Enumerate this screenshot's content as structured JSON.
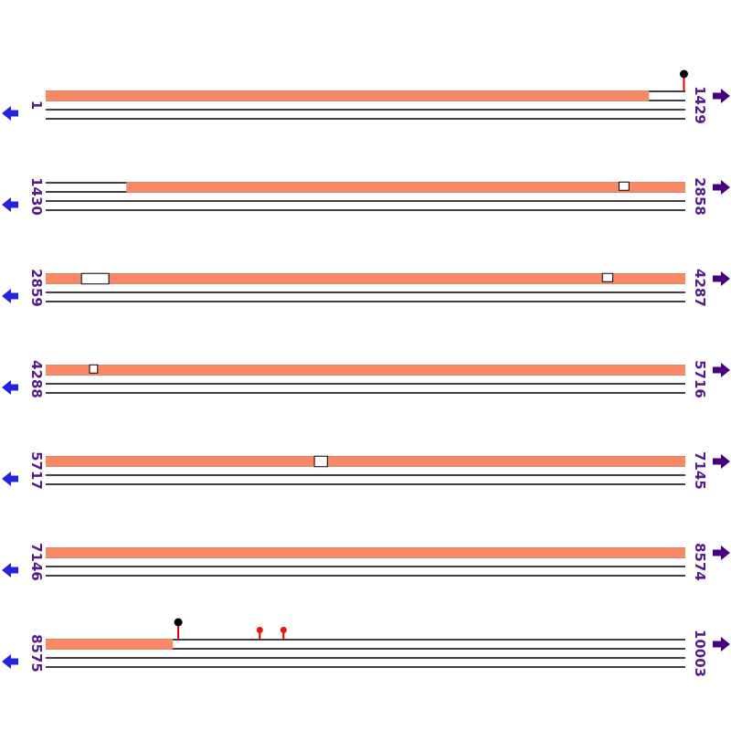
{
  "colors": {
    "bar": "#FA8864",
    "track_line": "#000000",
    "label": "#551A8B",
    "left_arrow": "#2424DF",
    "right_arrow": "#4B0082",
    "pin_stem": "#DD0000",
    "pin_head_red": "#EE1111",
    "pin_head_black": "#000000",
    "gap_fill": "#FFFFFF",
    "gap_border": "#000000",
    "background": "#FFFFFF"
  },
  "icons": {
    "left_nav": "left-arrow-icon",
    "right_nav": "right-arrow-icon",
    "marker": "pin-icon"
  },
  "range_per_row": 1429,
  "rows": [
    {
      "start_label": "1",
      "end_label": "1429",
      "start": 1,
      "end": 1429,
      "bars": [
        {
          "from": 1,
          "to": 1348
        }
      ],
      "gaps": [],
      "pins": [
        {
          "at": 1426,
          "head": "black",
          "size": "large"
        }
      ]
    },
    {
      "start_label": "1430",
      "end_label": "2858",
      "start": 1430,
      "end": 2858,
      "bars": [
        {
          "from": 1610,
          "to": 2858
        }
      ],
      "gaps": [
        {
          "from": 2710,
          "to": 2732,
          "full_height": false
        }
      ],
      "pins": []
    },
    {
      "start_label": "2859",
      "end_label": "4287",
      "start": 2859,
      "end": 4287,
      "bars": [
        {
          "from": 2859,
          "to": 4287
        }
      ],
      "gaps": [
        {
          "from": 2939,
          "to": 3000,
          "full_height": true
        },
        {
          "from": 4102,
          "to": 4125,
          "full_height": false
        }
      ],
      "pins": []
    },
    {
      "start_label": "4288",
      "end_label": "5716",
      "start": 4288,
      "end": 5716,
      "bars": [
        {
          "from": 4288,
          "to": 5716
        }
      ],
      "gaps": [
        {
          "from": 4386,
          "to": 4404,
          "full_height": false
        }
      ],
      "pins": []
    },
    {
      "start_label": "5717",
      "end_label": "7145",
      "start": 5717,
      "end": 7145,
      "bars": [
        {
          "from": 5717,
          "to": 7145
        }
      ],
      "gaps": [
        {
          "from": 6317,
          "to": 6346,
          "full_height": true
        }
      ],
      "pins": []
    },
    {
      "start_label": "7146",
      "end_label": "8574",
      "start": 7146,
      "end": 8574,
      "bars": [
        {
          "from": 7146,
          "to": 8574
        }
      ],
      "gaps": [],
      "pins": []
    },
    {
      "start_label": "8575",
      "end_label": "10003",
      "start": 8575,
      "end": 10003,
      "bars": [
        {
          "from": 8575,
          "to": 8859
        }
      ],
      "gaps": [],
      "pins": [
        {
          "at": 8871,
          "head": "black",
          "size": "large"
        },
        {
          "at": 9053,
          "head": "red",
          "size": "small"
        },
        {
          "at": 9106,
          "head": "red",
          "size": "small"
        }
      ]
    }
  ]
}
